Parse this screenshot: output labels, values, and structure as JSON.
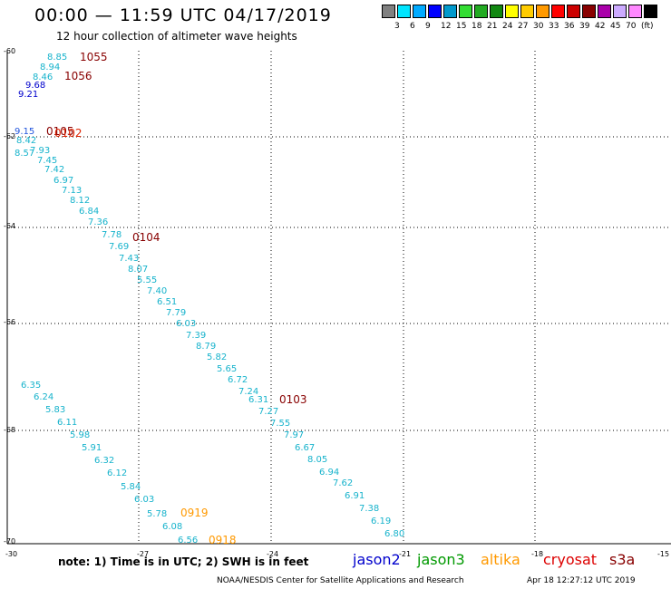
{
  "header": {
    "title": "00:00 — 11:59 UTC 04/17/2019",
    "subtitle": "12 hour collection of altimeter wave heights"
  },
  "legend": {
    "colors": [
      "#808080",
      "#00e5ff",
      "#00aaff",
      "#0000ff",
      "#0099cc",
      "#33dd33",
      "#22aa22",
      "#118811",
      "#ffff00",
      "#ffcc00",
      "#ff9900",
      "#ff0000",
      "#cc0000",
      "#880000",
      "#aa00aa",
      "#ccaaff",
      "#ff88ff",
      "#000000"
    ],
    "labels": [
      "3",
      "6",
      "9",
      "12",
      "15",
      "18",
      "21",
      "24",
      "27",
      "30",
      "33",
      "36",
      "39",
      "42",
      "45",
      "70"
    ],
    "unit": "(ft)"
  },
  "axes": {
    "lon_labels": [
      "-30",
      "-27",
      "-24",
      "-21",
      "-18",
      "-15"
    ],
    "lat_labels": [
      "-60",
      "-62",
      "-64",
      "-66",
      "-68",
      "-70"
    ]
  },
  "track_1": {
    "values": [
      "8.85",
      "8.94",
      "8.46",
      "9.68",
      "9.21",
      "9.15",
      "8.42",
      "8.57",
      "7.93",
      "7.45",
      "7.42",
      "6.97",
      "7.13",
      "8.12",
      "6.84",
      "7.36",
      "7.78",
      "7.69",
      "7.43",
      "8.07",
      "5.55",
      "7.40",
      "6.51",
      "7.79",
      "6.03",
      "7.39",
      "8.79",
      "5.82",
      "5.65",
      "6.72",
      "7.24",
      "6.31",
      "7.27",
      "7.55",
      "7.97",
      "6.67",
      "8.05",
      "6.94",
      "7.62",
      "6.91",
      "7.38",
      "6.19",
      "6.80"
    ],
    "times": [
      "1055",
      "1056",
      "0105",
      "0102",
      "0104",
      "0103"
    ]
  },
  "track_2": {
    "values": [
      "6.35",
      "6.24",
      "5.83",
      "6.11",
      "5.98",
      "5.91",
      "6.32",
      "6.12",
      "5.84",
      "6.03",
      "5.78",
      "6.08",
      "6.56"
    ],
    "times": [
      "0919",
      "0918"
    ]
  },
  "notes": {
    "text": "note:  1) Time is in UTC;  2) SWH is in feet",
    "satellites": [
      {
        "name": "jason2",
        "color": "#0000cc"
      },
      {
        "name": "jason3",
        "color": "#009900"
      },
      {
        "name": "altika",
        "color": "#ff9900"
      },
      {
        "name": "cryosat",
        "color": "#dd0000"
      },
      {
        "name": "s3a",
        "color": "#880000"
      }
    ]
  },
  "footer": {
    "org": "NOAA/NESDIS Center for Satellite Applications and Research",
    "generated": "Apr 18 12:27:12 UTC 2019"
  }
}
